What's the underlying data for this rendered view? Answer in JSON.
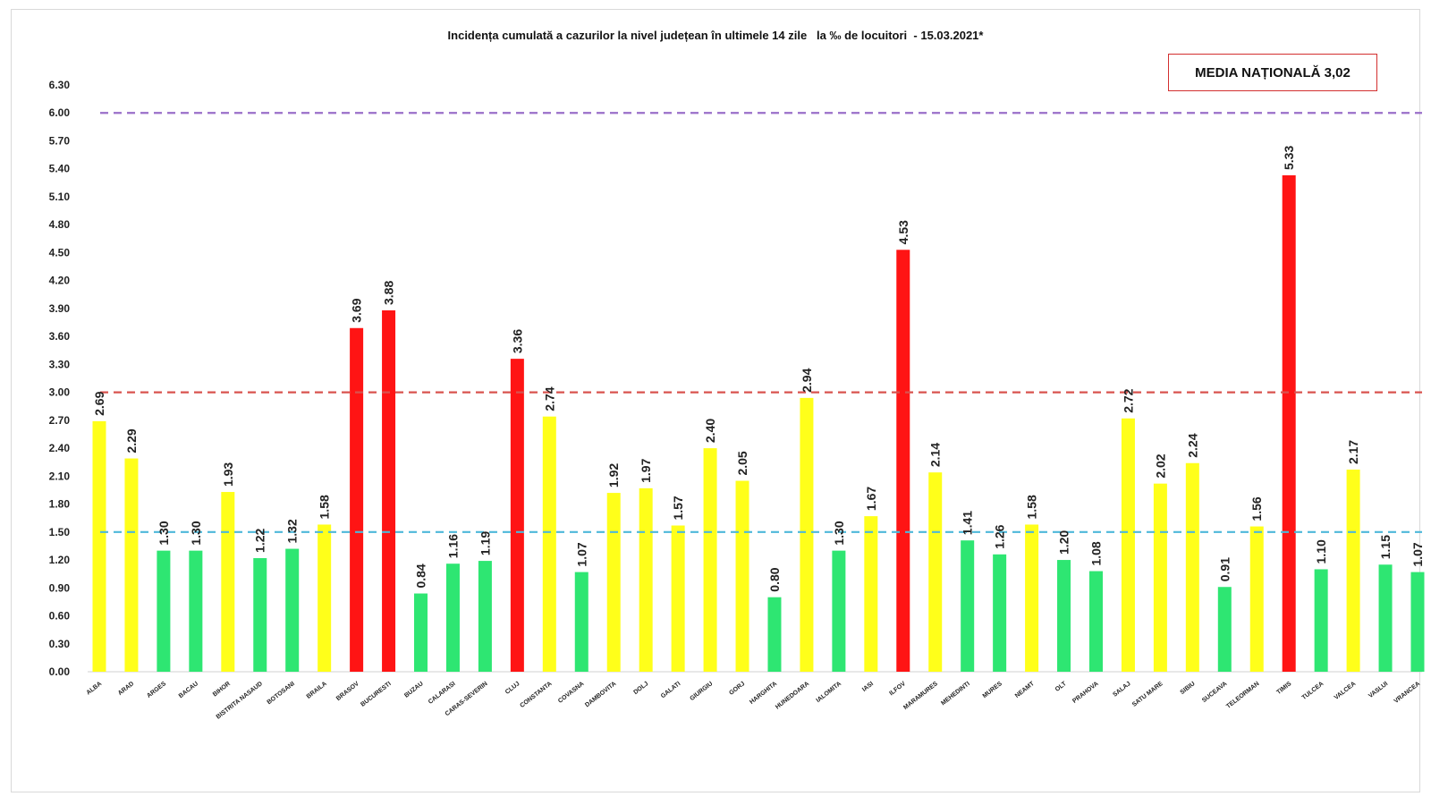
{
  "chart_data": {
    "type": "bar",
    "title": "Incidența cumulată a cazurilor la nivel județean în ultimele 14 zile   la ‰ de locuitori  - 15.03.2021*",
    "annotation": "MEDIA NAȚIONALĂ 3,02",
    "xlabel": "",
    "ylabel": "",
    "ylim": [
      0,
      6.3
    ],
    "yticks": [
      "0.00",
      "0.30",
      "0.60",
      "0.90",
      "1.20",
      "1.50",
      "1.80",
      "2.10",
      "2.40",
      "2.70",
      "3.00",
      "3.30",
      "3.60",
      "3.90",
      "4.20",
      "4.50",
      "4.80",
      "5.10",
      "5.40",
      "5.70",
      "6.00",
      "6.30"
    ],
    "grid": false,
    "categories": [
      "ALBA",
      "ARAD",
      "ARGES",
      "BACAU",
      "BIHOR",
      "BISTRITA NASAUD",
      "BOTOSANI",
      "BRAILA",
      "BRASOV",
      "BUCURESTI",
      "BUZAU",
      "CALARASI",
      "CARAS-SEVERIN",
      "CLUJ",
      "CONSTANTA",
      "COVASNA",
      "DAMBOVITA",
      "DOLJ",
      "GALATI",
      "GIURGIU",
      "GORJ",
      "HARGHITA",
      "HUNEDOARA",
      "IALOMITA",
      "IASI",
      "ILFOV",
      "MARAMURES",
      "MEHEDINTI",
      "MURES",
      "NEAMT",
      "OLT",
      "PRAHOVA",
      "SALAJ",
      "SATU MARE",
      "SIBIU",
      "SUCEAVA",
      "TELEORMAN",
      "TIMIS",
      "TULCEA",
      "VALCEA",
      "VASLUI",
      "VRANCEA"
    ],
    "values": [
      2.69,
      2.29,
      1.3,
      1.3,
      1.93,
      1.22,
      1.32,
      1.58,
      3.69,
      3.88,
      0.84,
      1.16,
      1.19,
      3.36,
      2.74,
      1.07,
      1.92,
      1.97,
      1.57,
      2.4,
      2.05,
      0.8,
      2.94,
      1.3,
      1.67,
      4.53,
      2.14,
      1.41,
      1.26,
      1.58,
      1.2,
      1.08,
      2.72,
      2.02,
      2.24,
      0.91,
      1.56,
      5.33,
      1.1,
      2.17,
      1.15,
      1.07
    ],
    "value_labels": [
      "2.69",
      "2.29",
      "1.30",
      "1.30",
      "1.93",
      "1.22",
      "1.32",
      "1.58",
      "3.69",
      "3.88",
      "0.84",
      "1.16",
      "1.19",
      "3.36",
      "2.74",
      "1.07",
      "1.92",
      "1.97",
      "1.57",
      "2.40",
      "2.05",
      "0.80",
      "2.94",
      "1.30",
      "1.67",
      "4.53",
      "2.14",
      "1.41",
      "1.26",
      "1.58",
      "1.20",
      "1.08",
      "2.72",
      "2.02",
      "2.24",
      "0.91",
      "1.56",
      "5.33",
      "1.10",
      "2.17",
      "1.15",
      "1.07"
    ],
    "thresholds": [
      {
        "name": "green-threshold",
        "value": 1.5,
        "color": "#4db8d9"
      },
      {
        "name": "red-threshold",
        "value": 3.0,
        "color": "#d9534f"
      },
      {
        "name": "purple-threshold",
        "value": 6.0,
        "color": "#9a6fc9"
      }
    ],
    "colors": {
      "low": "#2ee672",
      "mid": "#ffff1a",
      "high": "#ff1414"
    }
  }
}
